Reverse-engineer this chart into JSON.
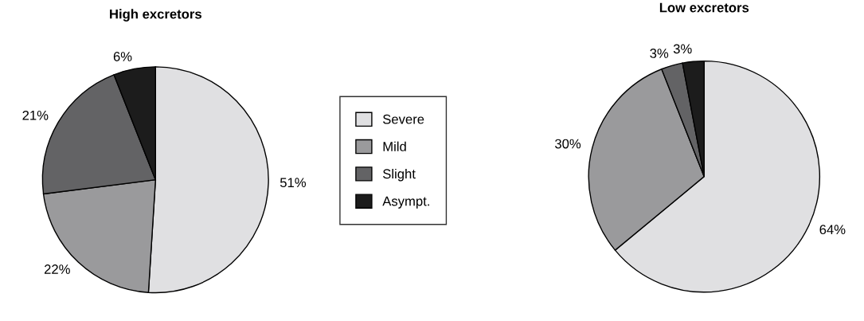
{
  "chart_data": [
    {
      "type": "pie",
      "title": "High excretors",
      "categories": [
        "Severe",
        "Mild",
        "Slight",
        "Asympt."
      ],
      "values": [
        51,
        22,
        21,
        6
      ],
      "value_labels": [
        "51%",
        "22%",
        "21%",
        "6%"
      ],
      "colors": [
        "#e0e0e2",
        "#9a9a9c",
        "#636365",
        "#1c1c1c"
      ],
      "legend": "right"
    },
    {
      "type": "pie",
      "title": "Low excretors",
      "categories": [
        null,
        null,
        null,
        null
      ],
      "values": [
        64,
        30,
        3,
        3
      ],
      "value_labels": [
        "64%",
        "30%",
        "3%",
        "3%"
      ],
      "colors": [
        "#e0e0e2",
        "#9a9a9c",
        "#636365",
        "#1c1c1c"
      ]
    }
  ]
}
